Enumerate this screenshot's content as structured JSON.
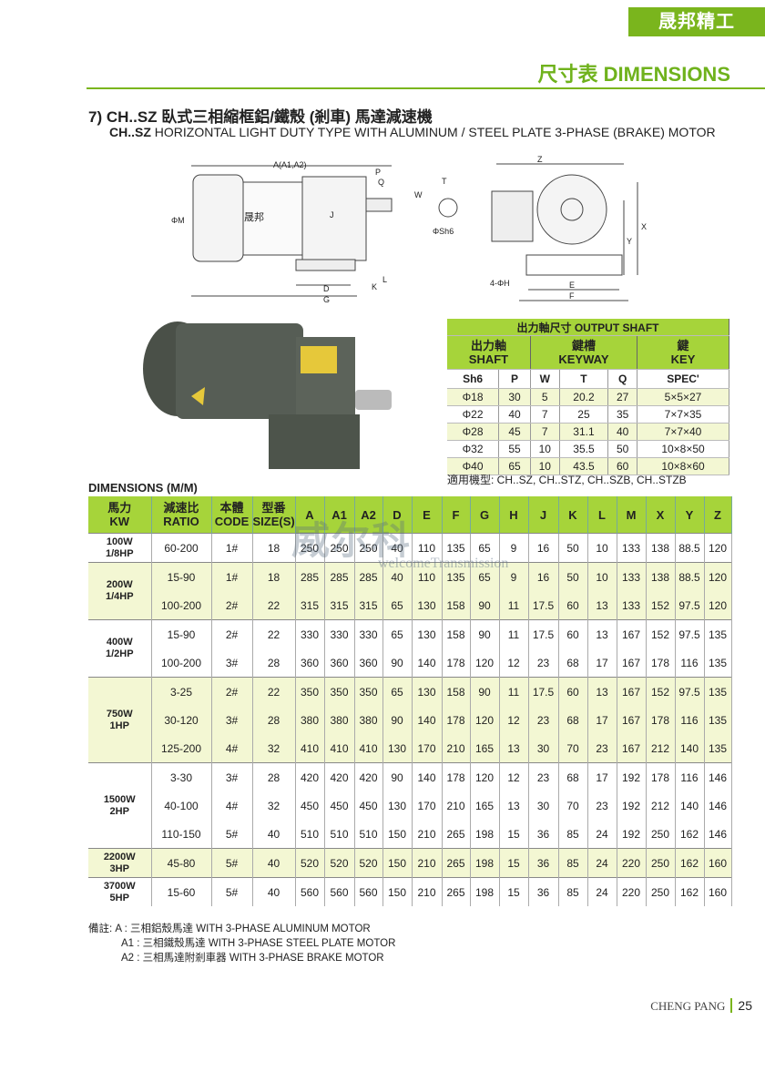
{
  "header": {
    "brand": "晟邦精工",
    "section": "尺寸表 DIMENSIONS"
  },
  "title": {
    "zh": "7) CH..SZ 臥式三相縮框鋁/鐵殼 (剎車) 馬達減速機",
    "en_model": "CH..SZ",
    "en_rest": " HORIZONTAL LIGHT DUTY TYPE WITH ALUMINUM / STEEL PLATE 3-PHASE (BRAKE) MOTOR"
  },
  "drawing_labels": {
    "a": "A(A1,A2)",
    "p": "P",
    "q": "Q",
    "m": "ΦM",
    "j": "J",
    "d": "D",
    "g": "G",
    "k": "K",
    "l": "L",
    "t": "T",
    "w": "W",
    "sh6": "ΦSh6",
    "z": "Z",
    "x": "X",
    "y": "Y",
    "e": "E",
    "f": "F",
    "h": "4-ΦH",
    "logo": "晟邦",
    "logo_en": "CHENG PANG"
  },
  "output_shaft": {
    "title": "出力軸尺寸 OUTPUT SHAFT",
    "groups": [
      {
        "zh": "出力軸",
        "en": "SHAFT"
      },
      {
        "zh": "鍵槽",
        "en": "KEYWAY"
      },
      {
        "zh": "鍵",
        "en": "KEY"
      }
    ],
    "columns": [
      "Sh6",
      "P",
      "W",
      "T",
      "Q",
      "SPEC'"
    ],
    "rows": [
      [
        "Φ18",
        "30",
        "5",
        "20.2",
        "27",
        "5×5×27"
      ],
      [
        "Φ22",
        "40",
        "7",
        "25",
        "35",
        "7×7×35"
      ],
      [
        "Φ28",
        "45",
        "7",
        "31.1",
        "40",
        "7×7×40"
      ],
      [
        "Φ32",
        "55",
        "10",
        "35.5",
        "50",
        "10×8×50"
      ],
      [
        "Φ40",
        "65",
        "10",
        "43.5",
        "60",
        "10×8×60"
      ]
    ],
    "applies": "適用機型: CH..SZ, CH..STZ, CH..SZB, CH..STZB"
  },
  "dimensions": {
    "label": "DIMENSIONS (M/M)",
    "headers": [
      "馬力\nKW",
      "減速比\nRATIO",
      "本體\nCODE",
      "型番\nSIZE(S)",
      "A",
      "A1",
      "A2",
      "D",
      "E",
      "F",
      "G",
      "H",
      "J",
      "K",
      "L",
      "M",
      "X",
      "Y",
      "Z"
    ],
    "groups": [
      {
        "kw": "100W\n1/8HP",
        "rows": [
          [
            "60-200",
            "1#",
            "18",
            "250",
            "250",
            "250",
            "40",
            "110",
            "135",
            "65",
            "9",
            "16",
            "50",
            "10",
            "133",
            "138",
            "88.5",
            "120"
          ]
        ]
      },
      {
        "kw": "200W\n1/4HP",
        "rows": [
          [
            "15-90",
            "1#",
            "18",
            "285",
            "285",
            "285",
            "40",
            "110",
            "135",
            "65",
            "9",
            "16",
            "50",
            "10",
            "133",
            "138",
            "88.5",
            "120"
          ],
          [
            "100-200",
            "2#",
            "22",
            "315",
            "315",
            "315",
            "65",
            "130",
            "158",
            "90",
            "11",
            "17.5",
            "60",
            "13",
            "133",
            "152",
            "97.5",
            "120"
          ]
        ]
      },
      {
        "kw": "400W\n1/2HP",
        "rows": [
          [
            "15-90",
            "2#",
            "22",
            "330",
            "330",
            "330",
            "65",
            "130",
            "158",
            "90",
            "11",
            "17.5",
            "60",
            "13",
            "167",
            "152",
            "97.5",
            "135"
          ],
          [
            "100-200",
            "3#",
            "28",
            "360",
            "360",
            "360",
            "90",
            "140",
            "178",
            "120",
            "12",
            "23",
            "68",
            "17",
            "167",
            "178",
            "116",
            "135"
          ]
        ]
      },
      {
        "kw": "750W\n1HP",
        "rows": [
          [
            "3-25",
            "2#",
            "22",
            "350",
            "350",
            "350",
            "65",
            "130",
            "158",
            "90",
            "11",
            "17.5",
            "60",
            "13",
            "167",
            "152",
            "97.5",
            "135"
          ],
          [
            "30-120",
            "3#",
            "28",
            "380",
            "380",
            "380",
            "90",
            "140",
            "178",
            "120",
            "12",
            "23",
            "68",
            "17",
            "167",
            "178",
            "116",
            "135"
          ],
          [
            "125-200",
            "4#",
            "32",
            "410",
            "410",
            "410",
            "130",
            "170",
            "210",
            "165",
            "13",
            "30",
            "70",
            "23",
            "167",
            "212",
            "140",
            "135"
          ]
        ]
      },
      {
        "kw": "1500W\n2HP",
        "rows": [
          [
            "3-30",
            "3#",
            "28",
            "420",
            "420",
            "420",
            "90",
            "140",
            "178",
            "120",
            "12",
            "23",
            "68",
            "17",
            "192",
            "178",
            "116",
            "146"
          ],
          [
            "40-100",
            "4#",
            "32",
            "450",
            "450",
            "450",
            "130",
            "170",
            "210",
            "165",
            "13",
            "30",
            "70",
            "23",
            "192",
            "212",
            "140",
            "146"
          ],
          [
            "110-150",
            "5#",
            "40",
            "510",
            "510",
            "510",
            "150",
            "210",
            "265",
            "198",
            "15",
            "36",
            "85",
            "24",
            "192",
            "250",
            "162",
            "146"
          ]
        ]
      },
      {
        "kw": "2200W\n3HP",
        "rows": [
          [
            "45-80",
            "5#",
            "40",
            "520",
            "520",
            "520",
            "150",
            "210",
            "265",
            "198",
            "15",
            "36",
            "85",
            "24",
            "220",
            "250",
            "162",
            "160"
          ]
        ]
      },
      {
        "kw": "3700W\n5HP",
        "rows": [
          [
            "15-60",
            "5#",
            "40",
            "560",
            "560",
            "560",
            "150",
            "210",
            "265",
            "198",
            "15",
            "36",
            "85",
            "24",
            "220",
            "250",
            "162",
            "160"
          ]
        ]
      }
    ]
  },
  "notes": {
    "prefix": "備註:",
    "items": [
      "A : 三相鋁殼馬達 WITH 3-PHASE ALUMINUM MOTOR",
      "A1 : 三相鐵殼馬達 WITH 3-PHASE STEEL PLATE MOTOR",
      "A2 : 三相馬達附剎車器 WITH 3-PHASE BRAKE MOTOR"
    ]
  },
  "watermark": {
    "zh": "威尔科",
    "en": "welcomeTransmission"
  },
  "footer": {
    "company": "CHENG PANG",
    "page": "25"
  },
  "colors": {
    "green": "#7ab51d",
    "header_green": "#a6d43a",
    "band": "#f3f7d3"
  }
}
